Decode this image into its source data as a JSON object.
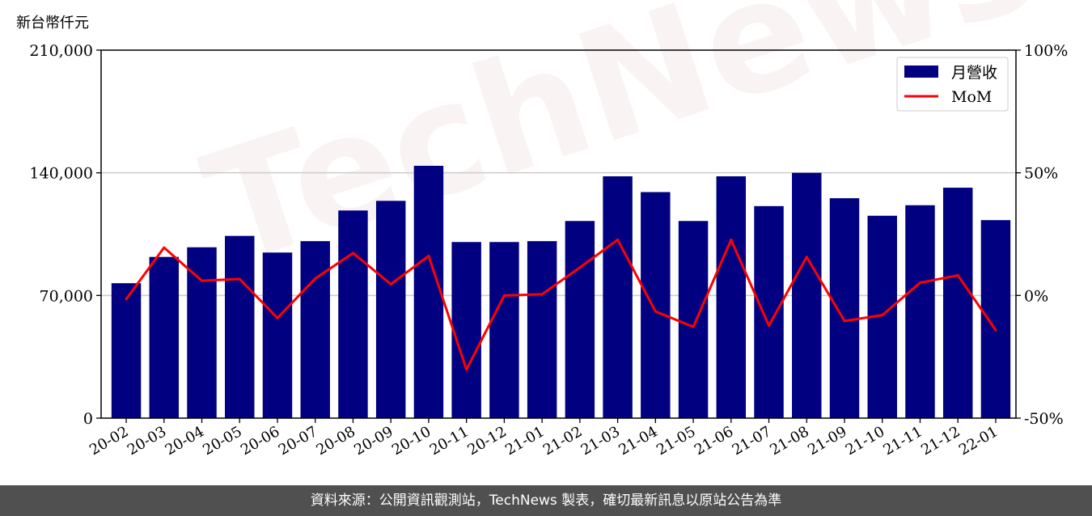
{
  "header": {
    "unit_label": "新台幣仟元"
  },
  "watermark": {
    "text": "TechNews"
  },
  "footer": {
    "text": "資料來源：公開資訊觀測站，TechNews 製表，確切最新訊息以原站公告為準"
  },
  "chart_data": {
    "type": "bar+line",
    "categories": [
      "20-02",
      "20-03",
      "20-04",
      "20-05",
      "20-06",
      "20-07",
      "20-08",
      "20-09",
      "20-10",
      "20-11",
      "20-12",
      "21-01",
      "21-02",
      "21-03",
      "21-04",
      "21-05",
      "21-06",
      "21-07",
      "21-08",
      "21-09",
      "21-10",
      "21-11",
      "21-12",
      "22-01"
    ],
    "series": [
      {
        "name": "月營收",
        "type": "bar",
        "axis": "left",
        "color": "#000080",
        "values": [
          77000,
          92000,
          97500,
          104000,
          94500,
          101000,
          118500,
          124000,
          144000,
          100500,
          100500,
          101000,
          112500,
          138000,
          129000,
          112500,
          138000,
          121000,
          140000,
          125500,
          115500,
          121500,
          131500,
          113000
        ]
      },
      {
        "name": "MoM",
        "type": "line",
        "axis": "right",
        "color": "#ff0000",
        "values": [
          -1.5,
          19.5,
          6.0,
          6.7,
          -9.2,
          6.9,
          17.3,
          4.6,
          16.1,
          -30.2,
          0.0,
          0.5,
          11.4,
          22.7,
          -6.5,
          -12.8,
          22.7,
          -12.3,
          15.7,
          -10.4,
          -8.0,
          5.2,
          8.2,
          -14.1
        ]
      }
    ],
    "left_axis": {
      "min": 0,
      "max": 210000,
      "ticks": [
        0,
        70000,
        140000,
        210000
      ],
      "tick_labels": [
        "0",
        "70,000",
        "140,000",
        "210,000"
      ]
    },
    "right_axis": {
      "min": -50,
      "max": 100,
      "ticks": [
        -50,
        0,
        50,
        100
      ],
      "tick_labels": [
        "-50%",
        "0%",
        "50%",
        "100%"
      ]
    },
    "grid": "horizontal",
    "legend": {
      "position": "top-right",
      "entries": [
        "月營收",
        "MoM"
      ]
    }
  }
}
